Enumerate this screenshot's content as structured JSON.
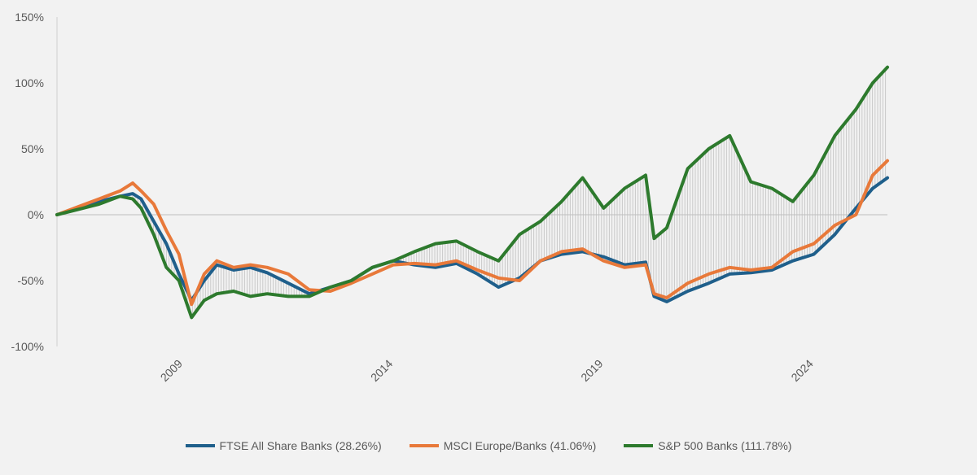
{
  "chart_data": {
    "type": "line",
    "title": "",
    "xlabel": "",
    "ylabel": "",
    "ylim": [
      -100,
      150
    ],
    "y_ticks": [
      "150%",
      "100%",
      "50%",
      "0%",
      "-50%",
      "-100%"
    ],
    "x_ticks": [
      "2009",
      "2014",
      "2019",
      "2024"
    ],
    "x_tick_values": [
      2009.0,
      2014.0,
      2019.0,
      2024.0
    ],
    "xlim": [
      2006.0,
      2025.75
    ],
    "grid": false,
    "gap_bars": "vertical gray lines between FTSE All Share Banks and S&P 500 Banks",
    "legend_position": "bottom",
    "x": [
      2006.0,
      2006.5,
      2007.0,
      2007.5,
      2007.8,
      2008.0,
      2008.3,
      2008.6,
      2008.9,
      2009.2,
      2009.5,
      2009.8,
      2010.2,
      2010.6,
      2011.0,
      2011.5,
      2012.0,
      2012.5,
      2013.0,
      2013.5,
      2014.0,
      2014.5,
      2015.0,
      2015.5,
      2016.0,
      2016.5,
      2017.0,
      2017.5,
      2018.0,
      2018.5,
      2019.0,
      2019.5,
      2020.0,
      2020.2,
      2020.5,
      2021.0,
      2021.5,
      2022.0,
      2022.5,
      2023.0,
      2023.5,
      2024.0,
      2024.5,
      2025.0,
      2025.4,
      2025.75
    ],
    "series": [
      {
        "name": "FTSE All Share Banks (28.26%)",
        "color": "#1f5f8b",
        "values": [
          0,
          5,
          10,
          14,
          16,
          12,
          -5,
          -22,
          -45,
          -65,
          -50,
          -38,
          -42,
          -40,
          -44,
          -52,
          -60,
          -55,
          -50,
          -40,
          -35,
          -38,
          -40,
          -37,
          -45,
          -55,
          -48,
          -35,
          -30,
          -28,
          -32,
          -38,
          -36,
          -62,
          -66,
          -58,
          -52,
          -45,
          -44,
          -42,
          -35,
          -30,
          -15,
          5,
          20,
          28
        ]
      },
      {
        "name": "MSCI Europe/Banks (41.06%)",
        "color": "#e8793a",
        "values": [
          0,
          6,
          12,
          18,
          24,
          18,
          8,
          -12,
          -30,
          -68,
          -45,
          -35,
          -40,
          -38,
          -40,
          -45,
          -57,
          -58,
          -52,
          -45,
          -38,
          -37,
          -38,
          -35,
          -42,
          -48,
          -50,
          -35,
          -28,
          -26,
          -35,
          -40,
          -38,
          -60,
          -63,
          -52,
          -45,
          -40,
          -42,
          -40,
          -28,
          -22,
          -8,
          0,
          30,
          41
        ]
      },
      {
        "name": "S&P 500 Banks (111.78%)",
        "color": "#2d7a2d",
        "values": [
          0,
          4,
          8,
          14,
          12,
          5,
          -15,
          -40,
          -50,
          -78,
          -65,
          -60,
          -58,
          -62,
          -60,
          -62,
          -62,
          -55,
          -50,
          -40,
          -35,
          -28,
          -22,
          -20,
          -28,
          -35,
          -15,
          -5,
          10,
          28,
          5,
          20,
          30,
          -18,
          -10,
          35,
          50,
          60,
          25,
          20,
          10,
          30,
          60,
          80,
          100,
          112
        ]
      }
    ]
  }
}
